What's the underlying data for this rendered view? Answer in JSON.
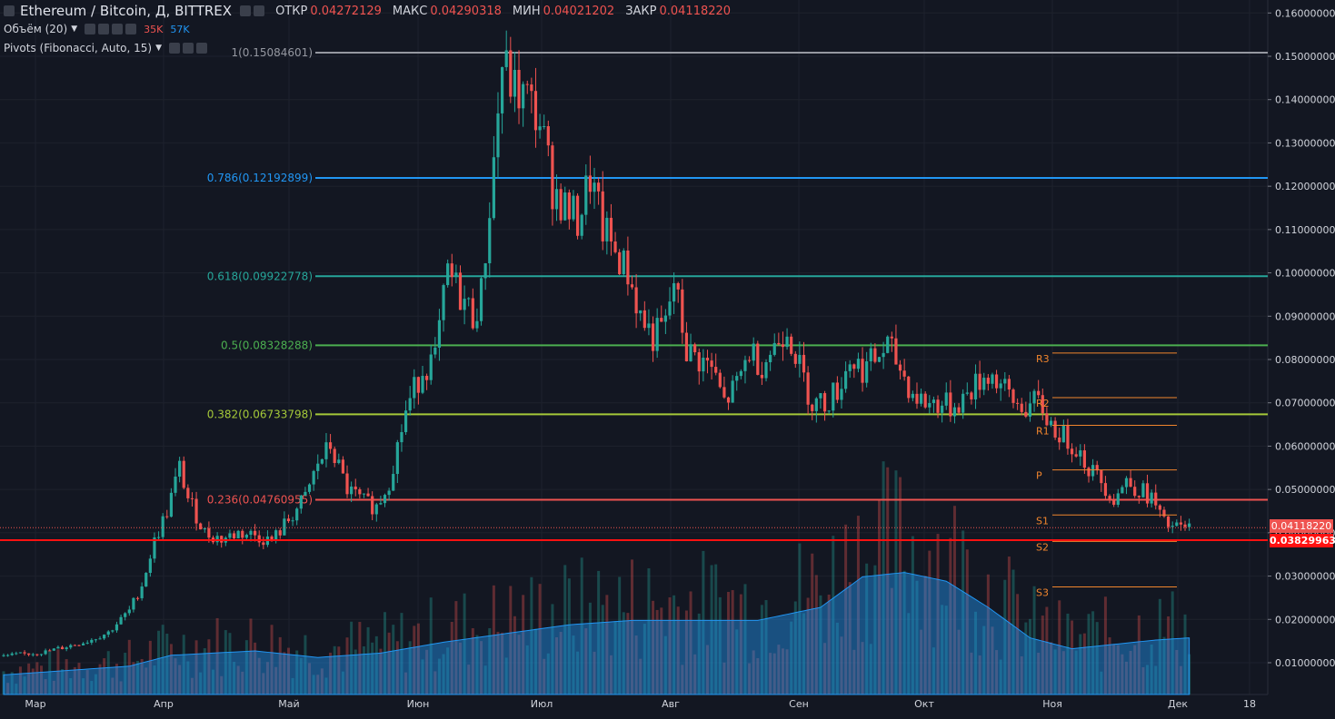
{
  "header": {
    "symbol": "Ethereum / Bitcoin, Д, BITTREX",
    "open_label": "ОТКР",
    "open_value": "0.04272129",
    "high_label": "МАКС",
    "high_value": "0.04290318",
    "low_label": "МИН",
    "low_value": "0.04021202",
    "close_label": "ЗАКР",
    "close_value": "0.04118220",
    "volume_label": "Объём (20)",
    "volume_value_1": "35K",
    "volume_value_2": "57K",
    "pivots_label": "Pivots (Fibonacci, Auto, 15)"
  },
  "price_tags": {
    "last": "0.04118220",
    "line": "0.03829963"
  },
  "colors": {
    "background": "#131722",
    "up": "#26a69a",
    "down": "#ef5350",
    "pivot": "#f0852d"
  },
  "chart_data": {
    "type": "candlestick",
    "ylim": [
      0.0,
      0.165
    ],
    "y_ticks": [
      "0.01000000",
      "0.02000000",
      "0.03000000",
      "0.04000000",
      "0.05000000",
      "0.06000000",
      "0.07000000",
      "0.08000000",
      "0.09000000",
      "0.10000000",
      "0.11000000",
      "0.12000000",
      "0.13000000",
      "0.14000000",
      "0.15000000",
      "0.16000000"
    ],
    "x_ticks": [
      "Мар",
      "Апр",
      "Май",
      "Июн",
      "Июл",
      "Авг",
      "Сен",
      "Окт",
      "Ноя",
      "Дек",
      "18"
    ],
    "fib_levels": [
      {
        "ratio": "1",
        "price": 0.15084601,
        "label": "1(0.15084601)",
        "color": "#9598a1"
      },
      {
        "ratio": "0.786",
        "price": 0.12192899,
        "label": "0.786(0.12192899)",
        "color": "#2196f3"
      },
      {
        "ratio": "0.618",
        "price": 0.09922778,
        "label": "0.618(0.09922778)",
        "color": "#26a69a"
      },
      {
        "ratio": "0.5",
        "price": 0.08328288,
        "label": "0.5(0.08328288)",
        "color": "#4caf50"
      },
      {
        "ratio": "0.382",
        "price": 0.06733798,
        "label": "0.382(0.06733798)",
        "color": "#a5c939"
      },
      {
        "ratio": "0.236",
        "price": 0.04760955,
        "label": "0.236(0.04760955)",
        "color": "#ef5350"
      }
    ],
    "horizontal_line": {
      "price": 0.03829963,
      "color": "#ff1111"
    },
    "pivots": [
      {
        "label": "R3",
        "price": 0.0815
      },
      {
        "label": "R2",
        "price": 0.0712
      },
      {
        "label": "R1",
        "price": 0.0648
      },
      {
        "label": "P",
        "price": 0.0545
      },
      {
        "label": "S1",
        "price": 0.0441
      },
      {
        "label": "S2",
        "price": 0.038
      },
      {
        "label": "S3",
        "price": 0.0275
      }
    ],
    "close_path": [
      [
        0,
        0.0115
      ],
      [
        10,
        0.0125
      ],
      [
        20,
        0.015
      ],
      [
        25,
        0.017
      ],
      [
        30,
        0.022
      ],
      [
        33,
        0.028
      ],
      [
        36,
        0.038
      ],
      [
        39,
        0.045
      ],
      [
        42,
        0.055
      ],
      [
        44,
        0.048
      ],
      [
        48,
        0.04
      ],
      [
        52,
        0.0385
      ],
      [
        56,
        0.04
      ],
      [
        60,
        0.0395
      ],
      [
        64,
        0.038
      ],
      [
        68,
        0.043
      ],
      [
        72,
        0.048
      ],
      [
        75,
        0.056
      ],
      [
        78,
        0.06
      ],
      [
        82,
        0.05
      ],
      [
        86,
        0.047
      ],
      [
        89,
        0.046
      ],
      [
        92,
        0.052
      ],
      [
        96,
        0.068
      ],
      [
        100,
        0.078
      ],
      [
        103,
        0.08
      ],
      [
        106,
        0.1
      ],
      [
        109,
        0.095
      ],
      [
        112,
        0.09
      ],
      [
        114,
        0.095
      ],
      [
        116,
        0.115
      ],
      [
        119,
        0.148
      ],
      [
        122,
        0.142
      ],
      [
        125,
        0.14
      ],
      [
        128,
        0.135
      ],
      [
        131,
        0.12
      ],
      [
        134,
        0.115
      ],
      [
        137,
        0.112
      ],
      [
        140,
        0.122
      ],
      [
        143,
        0.11
      ],
      [
        146,
        0.105
      ],
      [
        149,
        0.1
      ],
      [
        152,
        0.09
      ],
      [
        155,
        0.085
      ],
      [
        158,
        0.088
      ],
      [
        160,
        0.098
      ],
      [
        163,
        0.082
      ],
      [
        166,
        0.08
      ],
      [
        169,
        0.078
      ],
      [
        172,
        0.07
      ],
      [
        175,
        0.074
      ],
      [
        178,
        0.082
      ],
      [
        181,
        0.079
      ],
      [
        184,
        0.083
      ],
      [
        187,
        0.088
      ],
      [
        190,
        0.078
      ],
      [
        193,
        0.07
      ],
      [
        196,
        0.07
      ],
      [
        199,
        0.073
      ],
      [
        202,
        0.08
      ],
      [
        205,
        0.078
      ],
      [
        208,
        0.08
      ],
      [
        211,
        0.083
      ],
      [
        214,
        0.078
      ],
      [
        217,
        0.072
      ],
      [
        220,
        0.07
      ],
      [
        223,
        0.07
      ],
      [
        226,
        0.069
      ],
      [
        229,
        0.071
      ],
      [
        232,
        0.074
      ],
      [
        235,
        0.077
      ],
      [
        238,
        0.074
      ],
      [
        241,
        0.07
      ],
      [
        244,
        0.069
      ],
      [
        247,
        0.07
      ],
      [
        250,
        0.065
      ],
      [
        253,
        0.062
      ],
      [
        256,
        0.06
      ],
      [
        259,
        0.055
      ],
      [
        262,
        0.052
      ],
      [
        265,
        0.048
      ],
      [
        268,
        0.052
      ],
      [
        271,
        0.05
      ],
      [
        274,
        0.048
      ],
      [
        277,
        0.042
      ],
      [
        280,
        0.041
      ],
      [
        283,
        0.0412
      ]
    ],
    "volume_ma_path": [
      [
        0,
        4500
      ],
      [
        30,
        6500
      ],
      [
        40,
        9000
      ],
      [
        60,
        10000
      ],
      [
        75,
        8500
      ],
      [
        90,
        9500
      ],
      [
        105,
        12000
      ],
      [
        120,
        14000
      ],
      [
        135,
        16000
      ],
      [
        150,
        17000
      ],
      [
        165,
        17000
      ],
      [
        180,
        17000
      ],
      [
        195,
        20000
      ],
      [
        205,
        27000
      ],
      [
        215,
        28000
      ],
      [
        225,
        26000
      ],
      [
        235,
        20000
      ],
      [
        245,
        13000
      ],
      [
        255,
        10500
      ],
      [
        265,
        11500
      ],
      [
        275,
        12500
      ],
      [
        283,
        13000
      ]
    ]
  }
}
